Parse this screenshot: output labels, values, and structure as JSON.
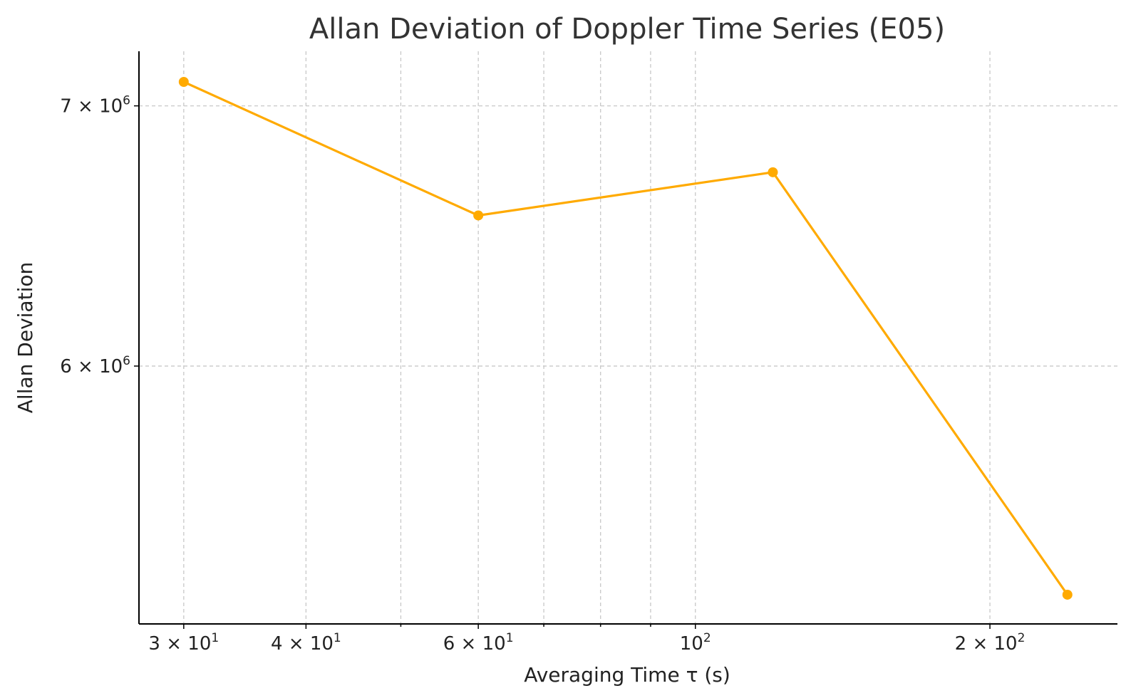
{
  "chart_data": {
    "type": "line",
    "title": "Allan Deviation of Doppler Time Series (E05)",
    "xlabel": "Averaging Time τ (s)",
    "ylabel": "Allan Deviation",
    "xscale": "log",
    "yscale": "log",
    "xlim": [
      27,
      270
    ],
    "ylim": [
      5150000,
      7230000
    ],
    "grid": true,
    "x_major_ticks": [
      {
        "value": 30,
        "base": "3 × 10",
        "exp": "1"
      },
      {
        "value": 40,
        "base": "4 × 10",
        "exp": "1"
      },
      {
        "value": 60,
        "base": "6 × 10",
        "exp": "1"
      },
      {
        "value": 100,
        "base": "10",
        "exp": "2"
      },
      {
        "value": 200,
        "base": "2 × 10",
        "exp": "2"
      }
    ],
    "x_minor_ticks": [
      50,
      70,
      80,
      90
    ],
    "y_ticks": [
      {
        "value": 6000000,
        "base": "6 × 10",
        "exp": "6"
      },
      {
        "value": 7000000,
        "base": "7 × 10",
        "exp": "6"
      }
    ],
    "series": [
      {
        "color": "#ffaa00",
        "marker": "circle",
        "x": [
          30,
          60,
          120,
          240
        ],
        "y": [
          7100000,
          6560000,
          6730000,
          5240000
        ]
      }
    ]
  }
}
